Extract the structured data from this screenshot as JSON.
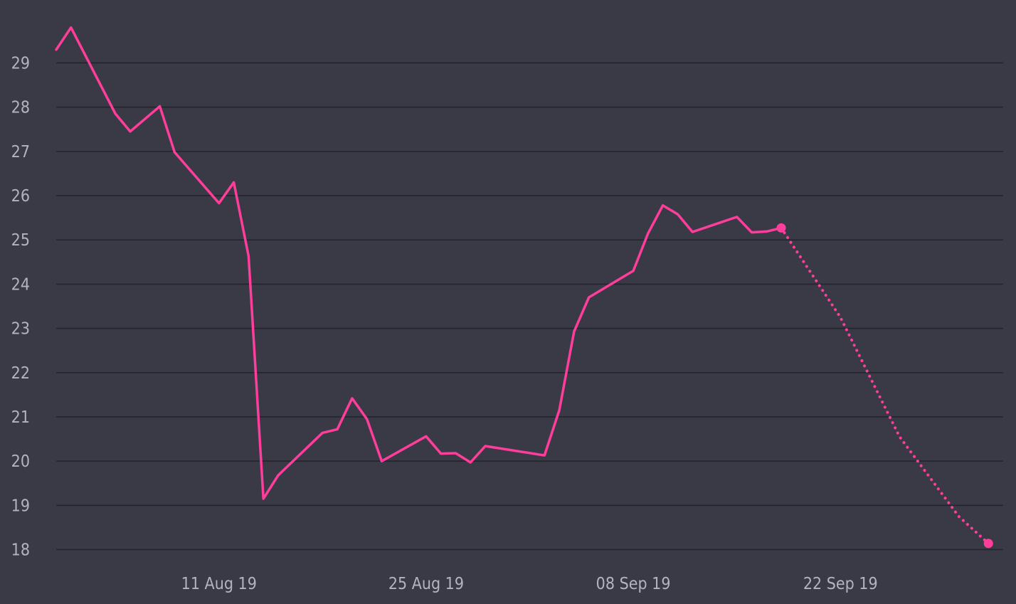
{
  "chart_data": {
    "type": "line",
    "title": "",
    "xlabel": "",
    "ylabel": "",
    "x_axis_type": "date",
    "xlim": [
      "2019-07-31",
      "2019-10-03"
    ],
    "ylim": [
      17.8,
      30.1
    ],
    "yticks": [
      18,
      19,
      20,
      21,
      22,
      23,
      24,
      25,
      26,
      27,
      28,
      29
    ],
    "xticks": [
      {
        "date": "2019-08-11",
        "label": "11 Aug 19"
      },
      {
        "date": "2019-08-25",
        "label": "25 Aug 19"
      },
      {
        "date": "2019-09-08",
        "label": "08 Sep 19"
      },
      {
        "date": "2019-09-22",
        "label": "22 Sep 19"
      }
    ],
    "grid": "horizontal",
    "series": [
      {
        "style": "solid",
        "color": "#ff3d9a",
        "end_marker": true,
        "points": [
          [
            "2019-07-31",
            29.3
          ],
          [
            "2019-08-01",
            29.8
          ],
          [
            "2019-08-04",
            27.85
          ],
          [
            "2019-08-05",
            27.45
          ],
          [
            "2019-08-07",
            28.02
          ],
          [
            "2019-08-08",
            26.98
          ],
          [
            "2019-08-11",
            25.83
          ],
          [
            "2019-08-12",
            26.3
          ],
          [
            "2019-08-13",
            24.63
          ],
          [
            "2019-08-14",
            19.15
          ],
          [
            "2019-08-15",
            19.68
          ],
          [
            "2019-08-18",
            20.64
          ],
          [
            "2019-08-19",
            20.72
          ],
          [
            "2019-08-20",
            21.42
          ],
          [
            "2019-08-21",
            20.95
          ],
          [
            "2019-08-22",
            20.0
          ],
          [
            "2019-08-25",
            20.56
          ],
          [
            "2019-08-26",
            20.17
          ],
          [
            "2019-08-27",
            20.18
          ],
          [
            "2019-08-28",
            19.97
          ],
          [
            "2019-08-29",
            20.34
          ],
          [
            "2019-09-02",
            20.13
          ],
          [
            "2019-09-03",
            21.15
          ],
          [
            "2019-09-04",
            22.93
          ],
          [
            "2019-09-05",
            23.7
          ],
          [
            "2019-09-08",
            24.3
          ],
          [
            "2019-09-09",
            25.15
          ],
          [
            "2019-09-10",
            25.78
          ],
          [
            "2019-09-11",
            25.58
          ],
          [
            "2019-09-12",
            25.18
          ],
          [
            "2019-09-15",
            25.52
          ],
          [
            "2019-09-16",
            25.17
          ],
          [
            "2019-09-17",
            25.19
          ],
          [
            "2019-09-18",
            25.27
          ]
        ]
      },
      {
        "style": "dotted",
        "color": "#ff3d9a",
        "end_marker": true,
        "points": [
          [
            "2019-09-18",
            25.27
          ],
          [
            "2019-09-22",
            23.25
          ],
          [
            "2019-09-26",
            20.55
          ],
          [
            "2019-09-30",
            18.75
          ],
          [
            "2019-10-02",
            18.14
          ]
        ]
      }
    ]
  }
}
